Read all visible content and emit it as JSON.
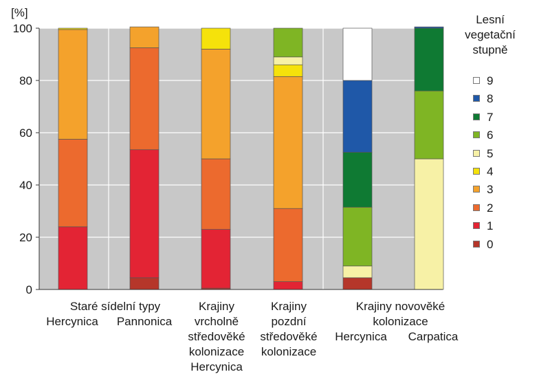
{
  "chart_data": {
    "type": "bar",
    "stacked": true,
    "ylabel": "[%]",
    "ylim": [
      0,
      100
    ],
    "yticks": [
      0,
      20,
      40,
      60,
      80,
      100
    ],
    "grid": true,
    "legend_title": "Lesní\nvegetační\nstupně",
    "legend_position": "right",
    "categories": [
      "Hercynica",
      "Pannonica",
      "Krajiny vrcholně středověké kolonizace Hercynica",
      "Krajiny pozdní středověké kolonizace",
      "Hercynica",
      "Carpatica"
    ],
    "series": [
      {
        "name": "0",
        "color": "#b5362a",
        "values": [
          0,
          4.5,
          0.5,
          0,
          4.5,
          0
        ]
      },
      {
        "name": "1",
        "color": "#e32434",
        "values": [
          24,
          49,
          22.5,
          3,
          0,
          0
        ]
      },
      {
        "name": "2",
        "color": "#ec6a2e",
        "values": [
          33.5,
          39,
          27,
          28,
          0,
          0
        ]
      },
      {
        "name": "3",
        "color": "#f4a22c",
        "values": [
          42,
          8,
          42,
          50.5,
          0,
          0
        ]
      },
      {
        "name": "4",
        "color": "#f5e20b",
        "values": [
          0.5,
          0,
          8,
          4.5,
          0,
          0
        ]
      },
      {
        "name": "5",
        "color": "#f7f1a6",
        "values": [
          0,
          0,
          0,
          3,
          4.5,
          50
        ]
      },
      {
        "name": "6",
        "color": "#7fb524",
        "values": [
          0,
          0,
          0,
          11,
          22.5,
          26
        ]
      },
      {
        "name": "7",
        "color": "#0f7a33",
        "values": [
          0,
          0,
          0,
          0,
          21,
          24
        ]
      },
      {
        "name": "8",
        "color": "#1f58a8",
        "values": [
          0,
          0,
          0,
          0,
          27.5,
          0.5
        ]
      },
      {
        "name": "9",
        "color": "#ffffff",
        "values": [
          0,
          0,
          0,
          0,
          20,
          0
        ]
      }
    ]
  },
  "group_labels": [
    "Staré sídelní typy",
    "Hercynica",
    "Pannonica",
    "Krajiny\nvrcholně\nstředověké\nkolonizace\nHercynica",
    "Krajiny\npozdní\nstředověké\nkolonizace",
    "Krajiny novověké\nkolonizace",
    "Hercynica",
    "Carpatica"
  ],
  "colors": {
    "plot_background": "#c8c8c8",
    "gridline": "#ffffff",
    "bar_outline": "#555555"
  }
}
